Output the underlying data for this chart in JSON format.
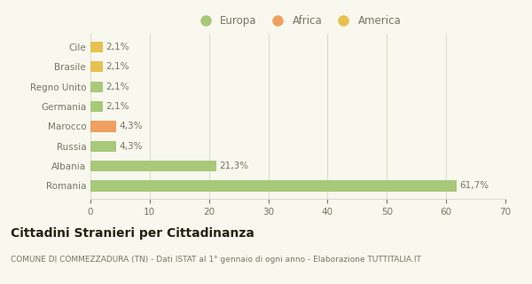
{
  "categories": [
    "Romania",
    "Albania",
    "Russia",
    "Marocco",
    "Germania",
    "Regno Unito",
    "Brasile",
    "Cile"
  ],
  "values": [
    61.7,
    21.3,
    4.3,
    4.3,
    2.1,
    2.1,
    2.1,
    2.1
  ],
  "labels": [
    "61,7%",
    "21,3%",
    "4,3%",
    "4,3%",
    "2,1%",
    "2,1%",
    "2,1%",
    "2,1%"
  ],
  "colors": [
    "#a8c87a",
    "#a8c87a",
    "#a8c87a",
    "#f0a060",
    "#a8c87a",
    "#a8c87a",
    "#e8c050",
    "#e8c050"
  ],
  "legend_items": [
    {
      "label": "Europa",
      "color": "#a8c87a"
    },
    {
      "label": "Africa",
      "color": "#f0a060"
    },
    {
      "label": "America",
      "color": "#e8c050"
    }
  ],
  "xlim": [
    0,
    70
  ],
  "xticks": [
    0,
    10,
    20,
    30,
    40,
    50,
    60,
    70
  ],
  "title": "Cittadini Stranieri per Cittadinanza",
  "subtitle": "COMUNE DI COMMEZZADURA (TN) - Dati ISTAT al 1° gennaio di ogni anno - Elaborazione TUTTITALIA.IT",
  "background_color": "#f8f8ee",
  "bar_height": 0.55,
  "grid_color": "#ddddcc",
  "text_color": "#777766",
  "title_color": "#222211",
  "subtitle_color": "#777766",
  "label_fontsize": 7.5,
  "tick_fontsize": 7.5,
  "legend_fontsize": 8.5,
  "title_fontsize": 10,
  "subtitle_fontsize": 6.5
}
